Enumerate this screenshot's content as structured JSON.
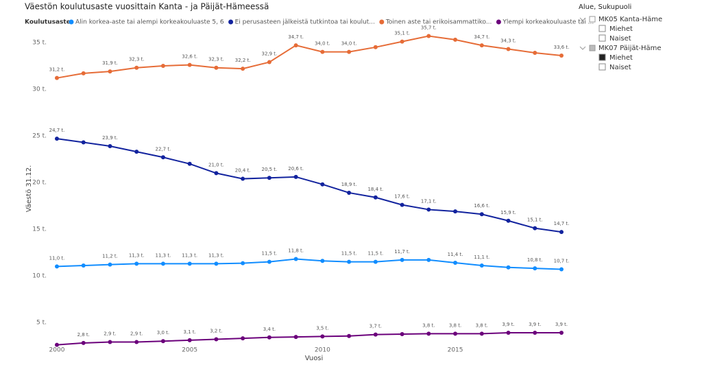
{
  "chart_data": {
    "type": "line",
    "title": "Väestön koulutusaste vuosittain Kanta - ja Päijät-Hämeessä",
    "legend_title": "Koulutusaste",
    "x_label": "Vuosi",
    "y_label": "Väestö 31.12.",
    "x": [
      2000,
      2001,
      2002,
      2003,
      2004,
      2005,
      2006,
      2007,
      2008,
      2009,
      2010,
      2011,
      2012,
      2013,
      2014,
      2015,
      2016,
      2017,
      2018,
      2019
    ],
    "xlim": [
      2000,
      2019
    ],
    "xticks": [
      2000,
      2005,
      2010,
      2015
    ],
    "ylim": [
      2.5,
      36.5
    ],
    "yticks": [
      {
        "value": 5,
        "label": "5 t."
      },
      {
        "value": 10,
        "label": "10 t."
      },
      {
        "value": 15,
        "label": "15 t."
      },
      {
        "value": 20,
        "label": "20 t."
      },
      {
        "value": 25,
        "label": "25 t."
      },
      {
        "value": 30,
        "label": "30 t."
      },
      {
        "value": 35,
        "label": "35 t."
      }
    ],
    "grid": false,
    "series": [
      {
        "name": "Alin korkea-aste tai alempi korkeakouluaste 5, 6",
        "color": "#118DFF",
        "values": [
          11.0,
          11.1,
          11.2,
          11.3,
          11.3,
          11.3,
          11.3,
          11.35,
          11.5,
          11.8,
          11.6,
          11.5,
          11.5,
          11.7,
          11.7,
          11.4,
          11.1,
          10.9,
          10.8,
          10.7
        ],
        "value_labels": [
          "11,0 t.",
          null,
          "11,2 t.",
          "11,3 t.",
          "11,3 t.",
          "11,3 t.",
          "11,3 t.",
          null,
          "11,5 t.",
          "11,8 t.",
          null,
          "11,5 t.",
          "11,5 t.",
          "11,7 t.",
          null,
          "11,4 t.",
          "11,1 t.",
          null,
          "10,8 t.",
          "10,7 t."
        ]
      },
      {
        "name": "Ei perusasteen jälkeistä tutkintoa tai koulut...",
        "color": "#12239E",
        "values": [
          24.7,
          24.3,
          23.9,
          23.3,
          22.7,
          22.0,
          21.0,
          20.4,
          20.5,
          20.6,
          19.8,
          18.9,
          18.4,
          17.6,
          17.1,
          16.9,
          16.6,
          15.9,
          15.1,
          14.7
        ],
        "value_labels": [
          "24,7 t.",
          null,
          "23,9 t.",
          null,
          "22,7 t.",
          null,
          "21,0 t.",
          "20,4 t.",
          "20,5 t.",
          "20,6 t.",
          null,
          "18,9 t.",
          "18,4 t.",
          "17,6 t.",
          "17,1 t.",
          null,
          "16,6 t.",
          "15,9 t.",
          "15,1 t.",
          "14,7 t."
        ]
      },
      {
        "name": "Toinen aste tai erikoisammattiko...",
        "color": "#E66C37",
        "values": [
          31.2,
          31.7,
          31.9,
          32.3,
          32.5,
          32.6,
          32.3,
          32.2,
          32.9,
          34.7,
          34.0,
          34.0,
          34.5,
          35.1,
          35.7,
          35.3,
          34.7,
          34.3,
          33.9,
          33.6
        ],
        "value_labels": [
          "31,2 t.",
          null,
          "31,9 t.",
          "32,3 t.",
          null,
          "32,6 t.",
          "32,3 t.",
          "32,2 t.",
          "32,9 t.",
          "34,7 t.",
          "34,0 t.",
          "34,0 t.",
          null,
          "35,1 t.",
          "35,7 t.",
          null,
          "34,7 t.",
          "34,3 t.",
          null,
          "33,6 t."
        ]
      },
      {
        "name": "Ylempi korkeakouluaste tai ...",
        "color": "#6B007B",
        "values": [
          2.6,
          2.8,
          2.9,
          2.9,
          3.0,
          3.1,
          3.2,
          3.3,
          3.4,
          3.45,
          3.5,
          3.55,
          3.7,
          3.75,
          3.8,
          3.8,
          3.8,
          3.9,
          3.9,
          3.9
        ],
        "value_labels": [
          null,
          "2,8 t.",
          "2,9 t.",
          "2,9 t.",
          "3,0 t.",
          "3,1 t.",
          "3,2 t.",
          null,
          "3,4 t.",
          null,
          "3,5 t.",
          null,
          "3,7 t.",
          null,
          "3,8 t.",
          "3,8 t.",
          "3,8 t.",
          "3,9 t.",
          "3,9 t.",
          "3,9 t."
        ]
      }
    ]
  },
  "slicer": {
    "title": "Alue, Sukupuoli",
    "groups": [
      {
        "label": "MK05 Kanta-Häme",
        "items": [
          {
            "label": "Miehet",
            "checked": false
          },
          {
            "label": "Naiset",
            "checked": false
          }
        ]
      },
      {
        "label": "MK07 Päijät-Häme",
        "items": [
          {
            "label": "Miehet",
            "checked": true
          },
          {
            "label": "Naiset",
            "checked": false
          }
        ]
      }
    ]
  }
}
